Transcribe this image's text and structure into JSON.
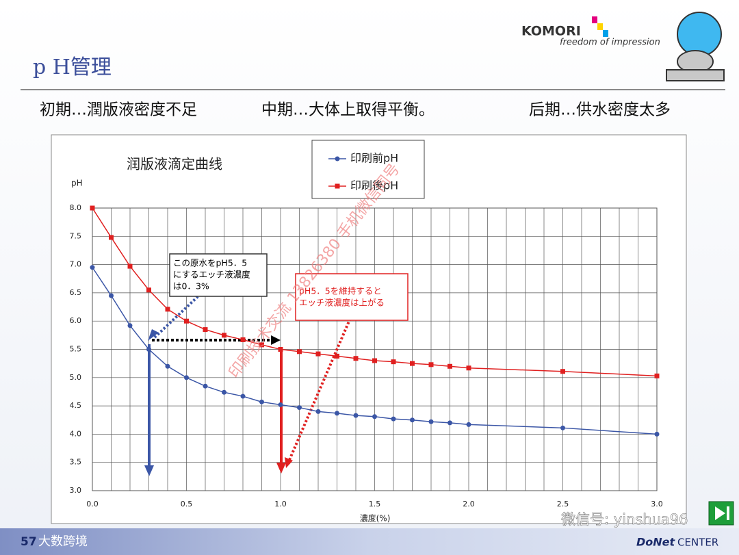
{
  "slide": {
    "title": "p H管理",
    "logo": "KOMORI",
    "tagline": "freedom of impression",
    "phases": [
      "初期…潤版液密度不足",
      "中期…大体上取得平衡。",
      "后期…供水密度太多"
    ],
    "page_number": "57",
    "footer_left": "大数跨境",
    "footer_brand": "DoNet",
    "footer_center": "CENTER",
    "wechat": "微信号: yinshua96",
    "watermark": "印刷技术交流 13826380 手机微信同号"
  },
  "chart_data": {
    "type": "line",
    "title": "润版液滴定曲线",
    "ylabel": "pH",
    "xlabel": "濃度(%)",
    "x": [
      0,
      0.1,
      0.2,
      0.3,
      0.4,
      0.5,
      0.6,
      0.7,
      0.8,
      0.9,
      1.0,
      1.1,
      1.2,
      1.3,
      1.4,
      1.5,
      1.6,
      1.7,
      1.8,
      1.9,
      2.0,
      2.5,
      3.0
    ],
    "series": [
      {
        "name": "印刷前pH",
        "color": "#3b56a6",
        "marker": "circle",
        "values": [
          6.95,
          6.45,
          5.92,
          5.5,
          5.2,
          5.0,
          4.85,
          4.74,
          4.67,
          4.57,
          4.52,
          4.47,
          4.4,
          4.37,
          4.33,
          4.31,
          4.27,
          4.25,
          4.22,
          4.2,
          4.17,
          4.11,
          4.0
        ]
      },
      {
        "name": "印刷後pH",
        "color": "#e02020",
        "marker": "square",
        "values": [
          8.0,
          7.48,
          6.97,
          6.55,
          6.21,
          6.0,
          5.85,
          5.75,
          5.67,
          5.58,
          5.5,
          5.46,
          5.42,
          5.38,
          5.34,
          5.3,
          5.28,
          5.25,
          5.23,
          5.2,
          5.17,
          5.11,
          5.03
        ]
      }
    ],
    "xlim": [
      0,
      3.0
    ],
    "ylim": [
      3.0,
      8.0
    ],
    "xticks": [
      {
        "value": 0,
        "label": "0.0"
      },
      0.5,
      {
        "value": 1,
        "label": "1.0"
      },
      1.5,
      {
        "value": 2,
        "label": "2.0"
      },
      2.5,
      {
        "value": 3,
        "label": "3.0"
      }
    ],
    "yticks": [
      {
        "value": 3,
        "label": "3.0"
      },
      3.5,
      {
        "value": 4,
        "label": "4.0"
      },
      4.5,
      {
        "value": 5,
        "label": "5.0"
      },
      5.5,
      {
        "value": 6,
        "label": "6.0"
      },
      6.5,
      {
        "value": 7,
        "label": "7.0"
      },
      7.5,
      {
        "value": 8,
        "label": "8.0"
      }
    ],
    "x_minor_grid": [
      0.1,
      0.2,
      0.3,
      0.4,
      0.6,
      0.7,
      0.8,
      0.9,
      1.1,
      1.2,
      1.3,
      1.4,
      1.6,
      1.7,
      1.8,
      1.9,
      2.1,
      2.2,
      2.3,
      2.4,
      2.6,
      2.7,
      2.8,
      2.9
    ],
    "grid": true,
    "legend": "top",
    "annotations": [
      {
        "lines": [
          "この原水をpH5．5",
          "にするエッチ液濃度",
          "は0．3%"
        ],
        "color": "#000000"
      },
      {
        "lines": [
          "pH5．5を維持すると",
          "エッチ液濃度は上がる"
        ],
        "color": "#e02020"
      }
    ]
  }
}
